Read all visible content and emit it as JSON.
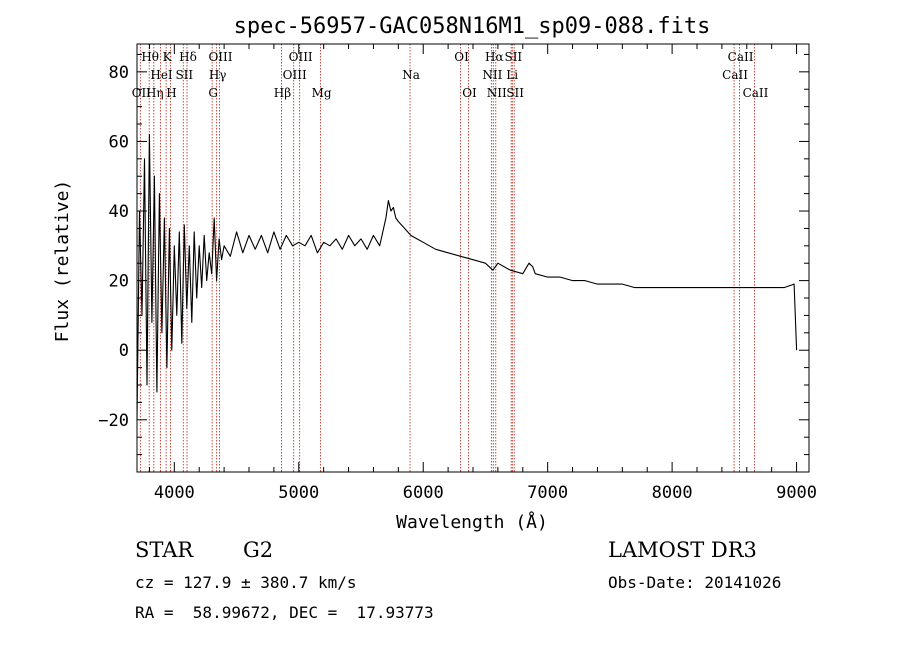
{
  "chart_data": {
    "type": "line",
    "title": "spec-56957-GAC058N16M1_sp09-088.fits",
    "xlabel": "Wavelength (Å)",
    "ylabel": "Flux (relative)",
    "xlim": [
      3700,
      9100
    ],
    "ylim": [
      -35,
      88
    ],
    "x_ticks": [
      4000,
      5000,
      6000,
      7000,
      8000,
      9000
    ],
    "x_tick_labels": [
      "4000",
      "5000",
      "6000",
      "7000",
      "8000",
      "9000"
    ],
    "y_ticks": [
      -20,
      0,
      20,
      40,
      60,
      80
    ],
    "y_tick_labels": [
      "−20",
      "0",
      "20",
      "40",
      "60",
      "80"
    ],
    "grid": false,
    "series": [
      {
        "name": "spectrum",
        "x": [
          3700,
          3720,
          3740,
          3760,
          3780,
          3800,
          3820,
          3840,
          3860,
          3880,
          3900,
          3920,
          3940,
          3960,
          3980,
          4000,
          4020,
          4040,
          4060,
          4080,
          4100,
          4120,
          4140,
          4160,
          4180,
          4200,
          4220,
          4240,
          4260,
          4280,
          4300,
          4320,
          4340,
          4360,
          4380,
          4400,
          4450,
          4500,
          4550,
          4600,
          4650,
          4700,
          4750,
          4800,
          4850,
          4900,
          4950,
          5000,
          5050,
          5100,
          5150,
          5200,
          5250,
          5300,
          5350,
          5400,
          5450,
          5500,
          5550,
          5600,
          5650,
          5700,
          5720,
          5740,
          5760,
          5780,
          5800,
          5850,
          5900,
          5950,
          6000,
          6100,
          6200,
          6300,
          6400,
          6500,
          6560,
          6580,
          6600,
          6700,
          6800,
          6850,
          6880,
          6900,
          7000,
          7100,
          7200,
          7300,
          7400,
          7500,
          7600,
          7700,
          7800,
          7900,
          8000,
          8100,
          8200,
          8300,
          8400,
          8500,
          8600,
          8700,
          8800,
          8900,
          8980,
          9000
        ],
        "y": [
          -20,
          40,
          10,
          55,
          -10,
          62,
          8,
          50,
          -12,
          45,
          5,
          38,
          -5,
          35,
          0,
          30,
          10,
          34,
          2,
          36,
          12,
          30,
          8,
          34,
          15,
          30,
          18,
          33,
          20,
          28,
          22,
          38,
          20,
          32,
          26,
          30,
          27,
          34,
          28,
          33,
          29,
          33,
          28,
          34,
          29,
          33,
          30,
          31,
          30,
          33,
          28,
          31,
          30,
          32,
          29,
          33,
          30,
          32,
          29,
          33,
          30,
          38,
          43,
          40,
          41,
          38,
          37,
          35,
          33,
          32,
          31,
          29,
          28,
          27,
          26,
          25,
          23,
          24,
          25,
          23,
          22,
          25,
          24,
          22,
          21,
          21,
          20,
          20,
          19,
          19,
          19,
          18,
          18,
          18,
          18,
          18,
          18,
          18,
          18,
          18,
          18,
          18,
          18,
          18,
          19,
          0
        ]
      }
    ],
    "lines": [
      {
        "label": "OII",
        "x": 3727,
        "row": 3
      },
      {
        "label": "Hθ",
        "x": 3798,
        "row": 1
      },
      {
        "label": "Hη",
        "x": 3835,
        "row": 3
      },
      {
        "label": "HeI",
        "x": 3889,
        "row": 2
      },
      {
        "label": "K",
        "x": 3934,
        "row": 1
      },
      {
        "label": "H",
        "x": 3969,
        "row": 3
      },
      {
        "label": "SII",
        "x": 4072,
        "row": 2
      },
      {
        "label": "Hδ",
        "x": 4102,
        "row": 1
      },
      {
        "label": "G",
        "x": 4304,
        "row": 3
      },
      {
        "label": "Hγ",
        "x": 4340,
        "row": 2
      },
      {
        "label": "OIII",
        "x": 4363,
        "row": 1
      },
      {
        "label": "Hβ",
        "x": 4861,
        "row": 3
      },
      {
        "label": "OIII",
        "x": 4959,
        "row": 2
      },
      {
        "label": "OIII",
        "x": 5007,
        "row": 1
      },
      {
        "label": "Mg",
        "x": 5175,
        "row": 3
      },
      {
        "label": "Na",
        "x": 5894,
        "row": 2
      },
      {
        "label": "OI",
        "x": 6300,
        "row": 1
      },
      {
        "label": "OI",
        "x": 6364,
        "row": 3
      },
      {
        "label": "NII",
        "x": 6548,
        "row": 2
      },
      {
        "label": "Hα",
        "x": 6563,
        "row": 1
      },
      {
        "label": "NII",
        "x": 6583,
        "row": 3
      },
      {
        "label": "Li",
        "x": 6707,
        "row": 2
      },
      {
        "label": "SII",
        "x": 6716,
        "row": 1
      },
      {
        "label": "SII",
        "x": 6731,
        "row": 3
      },
      {
        "label": "CaII",
        "x": 8498,
        "row": 2
      },
      {
        "label": "CaII",
        "x": 8542,
        "row": 1
      },
      {
        "label": "CaII",
        "x": 8662,
        "row": 3
      }
    ]
  },
  "info": {
    "object_class": "STAR",
    "subclass": "G2",
    "survey": "LAMOST DR3",
    "redshift": "cz = 127.9 ± 380.7 km/s",
    "obs_date": "Obs-Date: 20141026",
    "coords": "RA =  58.99672, DEC =  17.93773"
  },
  "colors": {
    "axis": "#000000",
    "spectrum": "#000000",
    "line_marker": "#c0392b",
    "background": "#ffffff"
  }
}
